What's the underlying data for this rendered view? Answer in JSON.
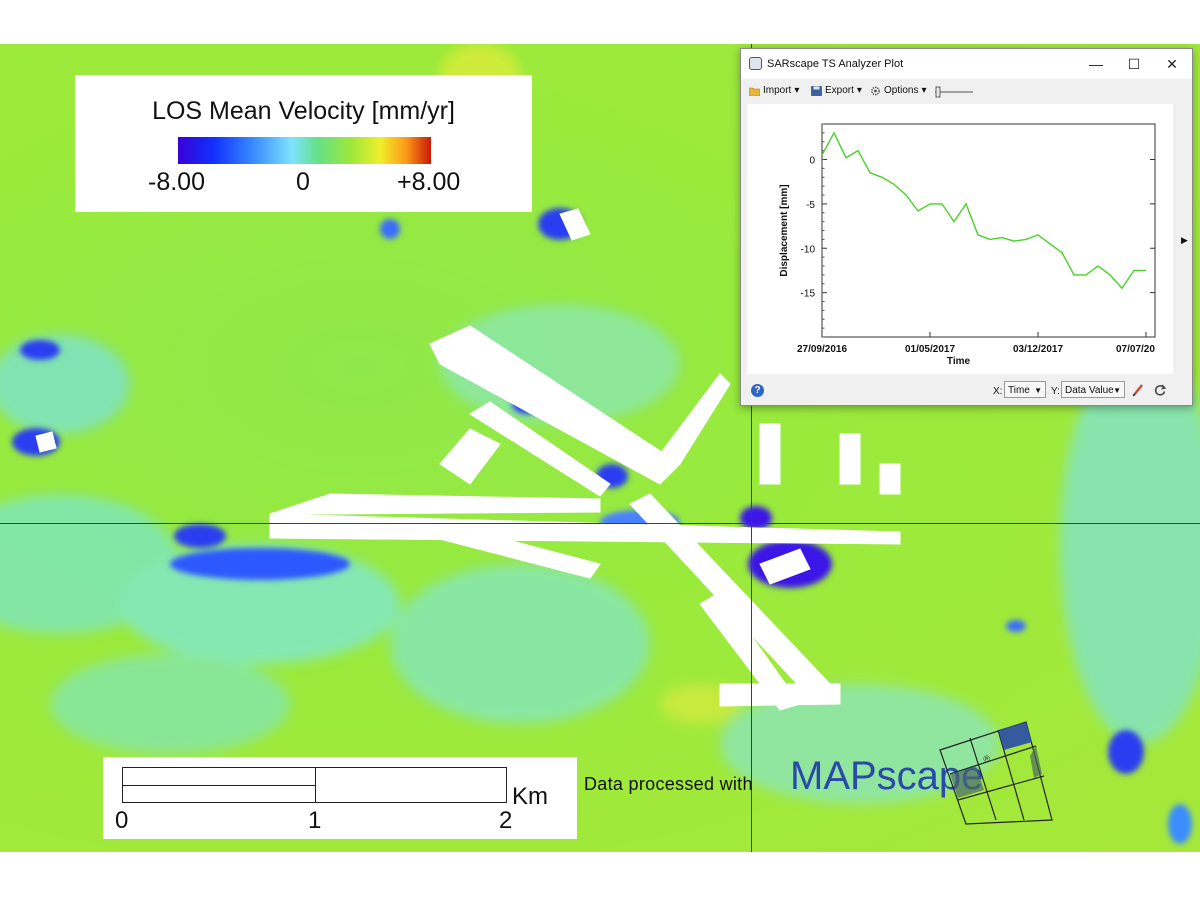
{
  "legend": {
    "title": "LOS Mean Velocity [mm/yr]",
    "min_label": "-8.00",
    "mid_label": "0",
    "max_label": "+8.00"
  },
  "scale_bar": {
    "labels": [
      "0",
      "1",
      "2"
    ],
    "unit": "Km"
  },
  "credit": {
    "text": "Data processed with",
    "brand": "MAPscape",
    "brand_mark": "®"
  },
  "window": {
    "title": "SARscape TS Analyzer Plot",
    "controls": {
      "minimize": "—",
      "maximize": "☐",
      "close": "✕"
    },
    "toolbar": {
      "import_label": "Import",
      "export_label": "Export",
      "options_label": "Options"
    },
    "status": {
      "x_label": "X:",
      "x_value": "Time",
      "y_label": "Y:",
      "y_value": "Data Value"
    }
  },
  "colors": {
    "series": "#4bd12a",
    "legend_low": "#3a00d6",
    "legend_mid": "#9be83c",
    "legend_high": "#c81a08"
  },
  "chart_data": {
    "type": "line",
    "xlabel": "Time",
    "ylabel": "Displacement [mm]",
    "x_tick_labels": [
      "27/09/2016",
      "01/05/2017",
      "03/12/2017",
      "07/07/20"
    ],
    "y_ticks": [
      0,
      -5,
      -10,
      -15
    ],
    "ylim": [
      -20,
      4
    ],
    "grid": false,
    "series": [
      {
        "x": [
          "2016-09-27",
          "2016-10-21",
          "2016-11-14",
          "2016-12-08",
          "2017-01-01",
          "2017-01-25",
          "2017-02-18",
          "2017-03-14",
          "2017-04-07",
          "2017-05-01",
          "2017-05-25",
          "2017-06-18",
          "2017-07-12",
          "2017-08-05",
          "2017-08-29",
          "2017-09-22",
          "2017-10-16",
          "2017-11-09",
          "2017-12-03",
          "2017-12-27",
          "2018-01-20",
          "2018-02-13",
          "2018-03-09",
          "2018-04-02",
          "2018-04-26",
          "2018-05-20",
          "2018-06-13",
          "2018-07-07"
        ],
        "values": [
          0.5,
          3.0,
          0.2,
          1.0,
          -1.5,
          -2.0,
          -2.8,
          -4.0,
          -5.8,
          -5.0,
          -5.0,
          -7.0,
          -5.0,
          -8.5,
          -9.0,
          -8.8,
          -9.2,
          -9.0,
          -8.5,
          -9.5,
          -10.5,
          -13.0,
          -13.0,
          -12.0,
          -13.0,
          -14.5,
          -12.5,
          -12.5
        ]
      }
    ]
  }
}
